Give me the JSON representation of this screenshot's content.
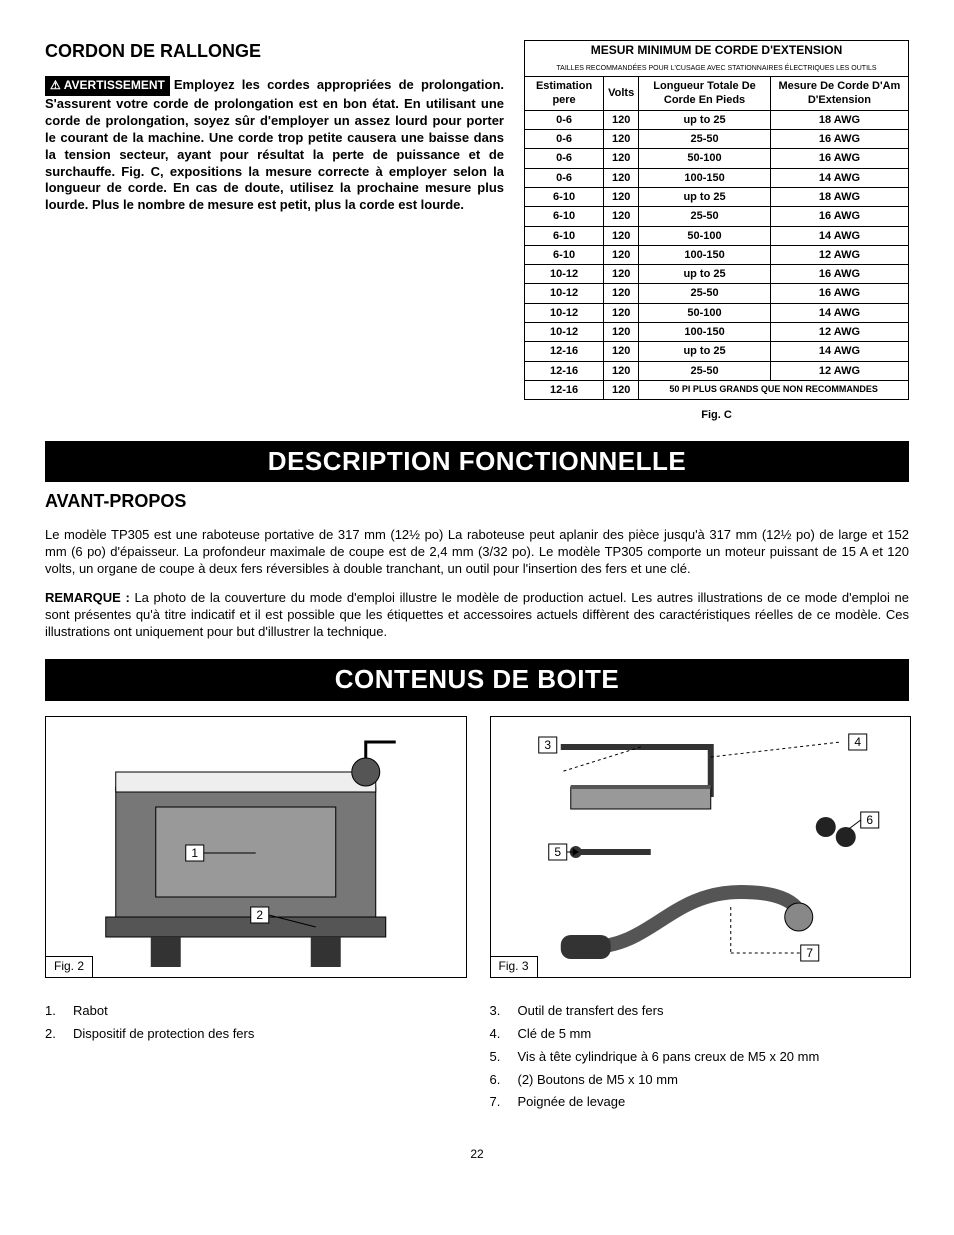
{
  "cord_section": {
    "heading": "CORDON DE RALLONGE",
    "warning_label": "AVERTISSEMENT",
    "text": "Employez les cordes appropriées de prolongation. S'assurent votre corde de prolongation est en bon état. En utilisant une corde de prolongation, soyez sûr d'employer un assez lourd pour porter le courant de la machine. Une corde trop petite causera une baisse dans la tension secteur, ayant pour résultat la perte de puissance et de surchauffe. Fig. C, expositions la mesure correcte à employer selon la longueur de corde. En cas de doute, utilisez la prochaine mesure plus lourde. Plus le nombre de mesure est petit, plus la corde est lourde."
  },
  "table": {
    "title": "MESUR MINIMUM DE CORDE D'EXTENSION",
    "subtitle": "TAILLES RECOMMANDÉES POUR L'CUSAGE AVEC STATIONNAIRES ÉLECTRIQUES LES OUTILS",
    "headers": [
      "Estimation pere",
      "Volts",
      "Longueur Totale De Corde En Pieds",
      "Mesure De Corde D'Am D'Extension"
    ],
    "rows": [
      [
        "0-6",
        "120",
        "up to 25",
        "18 AWG"
      ],
      [
        "0-6",
        "120",
        "25-50",
        "16 AWG"
      ],
      [
        "0-6",
        "120",
        "50-100",
        "16 AWG"
      ],
      [
        "0-6",
        "120",
        "100-150",
        "14 AWG"
      ],
      [
        "6-10",
        "120",
        "up to 25",
        "18 AWG"
      ],
      [
        "6-10",
        "120",
        "25-50",
        "16 AWG"
      ],
      [
        "6-10",
        "120",
        "50-100",
        "14 AWG"
      ],
      [
        "6-10",
        "120",
        "100-150",
        "12 AWG"
      ],
      [
        "10-12",
        "120",
        "up to 25",
        "16 AWG"
      ],
      [
        "10-12",
        "120",
        "25-50",
        "16 AWG"
      ],
      [
        "10-12",
        "120",
        "50-100",
        "14 AWG"
      ],
      [
        "10-12",
        "120",
        "100-150",
        "12 AWG"
      ],
      [
        "12-16",
        "120",
        "up to 25",
        "14 AWG"
      ],
      [
        "12-16",
        "120",
        "25-50",
        "12 AWG"
      ]
    ],
    "last_row": [
      "12-16",
      "120",
      "50 PI PLUS GRANDS QUE NON RECOMMANDES"
    ],
    "caption": "Fig. C",
    "group_breaks": [
      4,
      8,
      12
    ]
  },
  "desc_section": {
    "banner": "DESCRIPTION FONCTIONNELLE",
    "heading": "AVANT-PROPOS",
    "p1": "Le modèle TP305 est une raboteuse portative de 317 mm (12½ po) La raboteuse peut aplanir des pièce jusqu'à 317 mm (12½ po) de large et 152 mm (6 po) d'épaisseur. La profondeur maximale de coupe est de 2,4 mm (3/32 po). Le modèle TP305 comporte un moteur puissant de 15 A  et 120 volts, un organe de coupe à deux fers réversibles à double tranchant, un outil pour l'insertion des fers et une clé.",
    "p2_lead": "REMARQUE :",
    "p2": " La photo de la couverture du mode d'emploi illustre le modèle de production actuel. Les autres illustrations de ce mode d'emploi ne sont présentes qu'à titre indicatif et il est possible que les étiquettes et accessoires actuels diffèrent des caractéristiques réelles de ce modèle. Ces illustrations ont uniquement pour but d'illustrer la technique."
  },
  "box_section": {
    "banner": "CONTENUS DE BOITE",
    "fig2_label": "Fig. 2",
    "fig3_label": "Fig. 3",
    "callouts_fig2": [
      "1",
      "2"
    ],
    "callouts_fig3": [
      "3",
      "4",
      "5",
      "6",
      "7"
    ],
    "list_left": [
      {
        "n": "1.",
        "t": "Rabot"
      },
      {
        "n": "2.",
        "t": "Dispositif de protection des fers"
      }
    ],
    "list_right": [
      {
        "n": "3.",
        "t": "Outil de transfert des fers"
      },
      {
        "n": "4.",
        "t": "Clé de 5 mm"
      },
      {
        "n": "5.",
        "t": "Vis à tête cylindrique à 6 pans creux de M5 x 20 mm"
      },
      {
        "n": "6.",
        "t": "(2) Boutons de M5 x 10 mm"
      },
      {
        "n": "7.",
        "t": "Poignée de levage"
      }
    ]
  },
  "page_number": "22",
  "colors": {
    "banner_bg": "#000000",
    "banner_fg": "#ffffff",
    "border": "#000000",
    "fig_fill": "#888888"
  }
}
